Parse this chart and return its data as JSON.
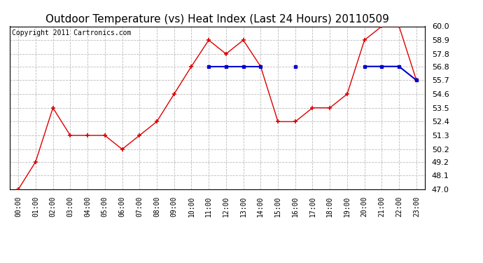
{
  "title": "Outdoor Temperature (vs) Heat Index (Last 24 Hours) 20110509",
  "copyright": "Copyright 2011 Cartronics.com",
  "x_labels": [
    "00:00",
    "01:00",
    "02:00",
    "03:00",
    "04:00",
    "05:00",
    "06:00",
    "07:00",
    "08:00",
    "09:00",
    "10:00",
    "11:00",
    "12:00",
    "13:00",
    "14:00",
    "15:00",
    "16:00",
    "17:00",
    "18:00",
    "19:00",
    "20:00",
    "21:00",
    "22:00",
    "23:00"
  ],
  "temp_data": [
    47.0,
    49.2,
    53.5,
    51.3,
    51.3,
    51.3,
    50.2,
    51.3,
    52.4,
    54.6,
    56.8,
    58.9,
    57.8,
    58.9,
    56.8,
    52.4,
    52.4,
    53.5,
    53.5,
    54.6,
    58.9,
    60.0,
    60.0,
    55.7
  ],
  "heat_data": [
    null,
    null,
    null,
    null,
    null,
    null,
    null,
    null,
    null,
    null,
    null,
    56.8,
    56.8,
    56.8,
    56.8,
    null,
    56.8,
    null,
    null,
    null,
    56.8,
    56.8,
    56.8,
    55.7
  ],
  "ylim": [
    47.0,
    60.0
  ],
  "yticks": [
    47.0,
    48.1,
    49.2,
    50.2,
    51.3,
    52.4,
    53.5,
    54.6,
    55.7,
    56.8,
    57.8,
    58.9,
    60.0
  ],
  "temp_color": "#dd0000",
  "heat_color": "#0000cc",
  "bg_color": "#ffffff",
  "grid_color": "#bbbbbb",
  "title_fontsize": 11,
  "copyright_fontsize": 7,
  "tick_fontsize": 7,
  "ytick_fontsize": 8
}
